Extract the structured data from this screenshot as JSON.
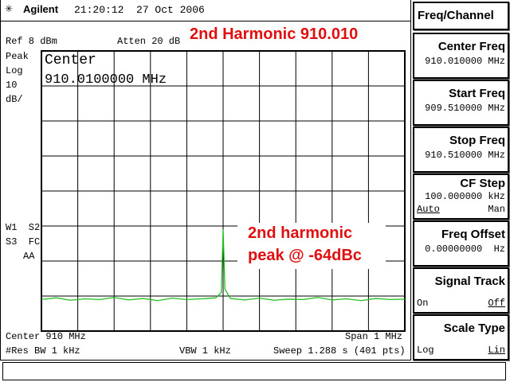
{
  "header": {
    "brand": "Agilent",
    "datetime": "21:20:12  27 Oct 2006"
  },
  "screen": {
    "ref": "Ref 8 dBm",
    "atten": "Atten 20 dB",
    "left_labels": [
      "Peak",
      "Log",
      "10",
      "dB/"
    ],
    "status_labels": [
      "W1  S2",
      "S3  FC",
      "AA"
    ],
    "marker_label": "Center",
    "marker_value": "910.0100000 MHz",
    "annotation_title": "2nd Harmonic 910.010",
    "annotation_peak": [
      "2nd harmonic",
      "peak @ -64dBc"
    ],
    "footer": {
      "center": "Center 910 MHz",
      "span": "Span 1 MHz",
      "rbw": "#Res BW 1 kHz",
      "vbw": "VBW 1 kHz",
      "sweep": "Sweep 1.288 s (401 pts)"
    }
  },
  "chart_data": {
    "type": "line",
    "x": [
      909.51,
      909.55,
      909.59,
      909.63,
      909.67,
      909.71,
      909.75,
      909.79,
      909.83,
      909.87,
      909.91,
      909.95,
      909.99,
      910.005,
      910.01,
      910.015,
      910.03,
      910.07,
      910.11,
      910.15,
      910.19,
      910.23,
      910.27,
      910.31,
      910.35,
      910.39,
      910.43,
      910.47,
      910.51
    ],
    "values": [
      -63,
      -62.5,
      -63.2,
      -62.8,
      -63,
      -62.4,
      -63.1,
      -62.7,
      -63.3,
      -62.6,
      -63,
      -62.8,
      -62.5,
      -61,
      -43,
      -60,
      -62.7,
      -63.1,
      -62.6,
      -63.2,
      -62.9,
      -63,
      -62.4,
      -63.1,
      -62.8,
      -63.3,
      -62.7,
      -63,
      -62.9
    ],
    "color": "#22c022",
    "xlim": [
      909.51,
      910.51
    ],
    "ylim": [
      -72,
      8
    ]
  },
  "softkeys": {
    "menu_title": "Freq/Channel",
    "keys": [
      {
        "label": "Center Freq",
        "value": "910.010000 MHz"
      },
      {
        "label": "Start Freq",
        "value": "909.510000 MHz"
      },
      {
        "label": "Stop Freq",
        "value": "910.510000 MHz"
      },
      {
        "label": "CF Step",
        "value": "100.000000 kHz",
        "options": [
          "Auto",
          "Man"
        ]
      },
      {
        "label": "Freq Offset",
        "value": "0.00000000  Hz"
      },
      {
        "label": "Signal Track",
        "options": [
          "On",
          "Off"
        ]
      },
      {
        "label": "Scale Type",
        "options": [
          "Log",
          "Lin"
        ]
      }
    ]
  }
}
